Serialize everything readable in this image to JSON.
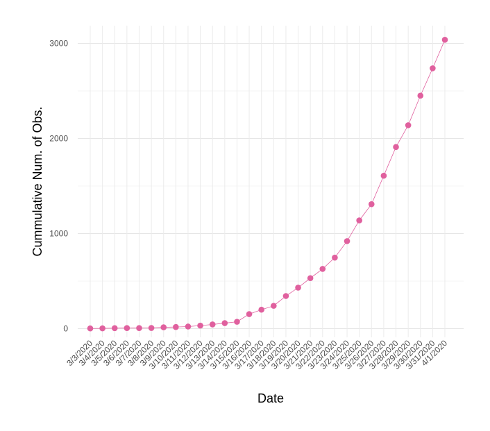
{
  "chart_data": {
    "type": "line",
    "xlabel": "Date",
    "ylabel": "Cummulative Num. of Obs.",
    "x": [
      "3/3/2020",
      "3/4/2020",
      "3/5/2020",
      "3/6/2020",
      "3/7/2020",
      "3/8/2020",
      "3/9/2020",
      "3/10/2020",
      "3/11/2020",
      "3/12/2020",
      "3/13/2020",
      "3/14/2020",
      "3/15/2020",
      "3/16/2020",
      "3/17/2020",
      "3/18/2020",
      "3/19/2020",
      "3/20/2020",
      "3/21/2020",
      "3/22/2020",
      "3/23/2020",
      "3/24/2020",
      "3/25/2020",
      "3/26/2020",
      "3/27/2020",
      "3/28/2020",
      "3/29/2020",
      "3/30/2020",
      "3/31/2020",
      "4/1/2020"
    ],
    "y": [
      2,
      3,
      5,
      6,
      6,
      7,
      14,
      17,
      22,
      32,
      44,
      58,
      72,
      153,
      199,
      240,
      343,
      431,
      531,
      628,
      747,
      920,
      1138,
      1309,
      1608,
      1910,
      2139,
      2450,
      2738,
      3038
    ],
    "ylim": [
      0,
      3200
    ],
    "yticks": [
      0,
      1000,
      2000,
      3000
    ],
    "grid": true,
    "line_color": "#e0609e",
    "point_color": "#e0609e"
  }
}
